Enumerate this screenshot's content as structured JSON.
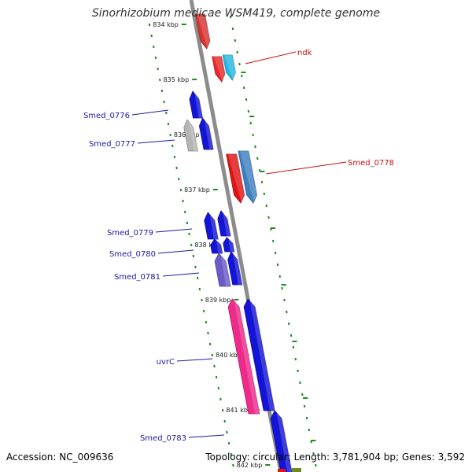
{
  "title": "Sinorhizobium medicae WSM419, complete genome",
  "accession_label": "Accession: NC_009636",
  "summary_label": "Topology: circular; Length: 3,781,904 bp; Genes: 3,592",
  "colors": {
    "backbone": "#8c8c8c",
    "tick": "#1e8c1e",
    "tick_label": "#222222",
    "label_blue": "#1a1aa6",
    "label_red": "#cc1111"
  },
  "ticks": [
    {
      "label": "834 kbp"
    },
    {
      "label": "835 kbp"
    },
    {
      "label": "836 kbp"
    },
    {
      "label": "837 kbp"
    },
    {
      "label": "838 kbp"
    },
    {
      "label": "839 kbp"
    },
    {
      "label": "840 kbp"
    },
    {
      "label": "841 kbp"
    },
    {
      "label": "842 kbp"
    }
  ],
  "genes": [
    {
      "label": "",
      "color": "#d8332f",
      "strand": "forward"
    },
    {
      "label": "ndk",
      "color": "#e8282a",
      "strand": "forward"
    },
    {
      "label": "",
      "color": "#25b8e6",
      "strand": "forward"
    },
    {
      "label": "Smed_0776",
      "color": "#1414d6",
      "strand": "reverse"
    },
    {
      "label": "Smed_0777",
      "color": "#b5b5b5",
      "strand": "reverse"
    },
    {
      "label": "",
      "color": "#1414d6",
      "strand": "reverse"
    },
    {
      "label": "Smed_0778",
      "color": "#e01414",
      "strand": "forward"
    },
    {
      "label": "",
      "color": "#3d7fbf",
      "strand": "forward"
    },
    {
      "label": "Smed_0779",
      "color": "#1414d6",
      "strand": "reverse"
    },
    {
      "label": "",
      "color": "#1414d6",
      "strand": "reverse"
    },
    {
      "label": "Smed_0780",
      "color": "#1414d6",
      "strand": "reverse"
    },
    {
      "label": "",
      "color": "#1414d6",
      "strand": "reverse"
    },
    {
      "label": "Smed_0781",
      "color": "#6b5bc9",
      "strand": "reverse"
    },
    {
      "label": "",
      "color": "#1414d6",
      "strand": "reverse"
    },
    {
      "label": "uvrC",
      "color": "#ee2a8a",
      "strand": "reverse"
    },
    {
      "label": "",
      "color": "#1414d6",
      "strand": "reverse"
    },
    {
      "label": "Smed_0783",
      "color": "#1414d6",
      "strand": "reverse"
    }
  ]
}
